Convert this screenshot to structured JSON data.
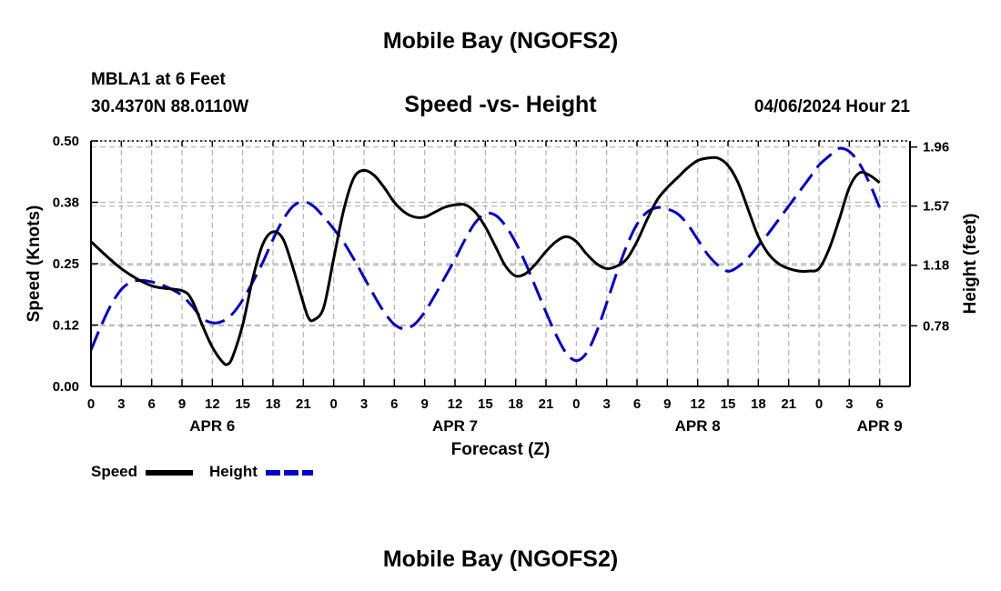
{
  "page": {
    "title": "Mobile Bay (NGOFS2)",
    "footer_title": "Mobile Bay (NGOFS2)",
    "station": "MBLA1 at 6 Feet",
    "coords": "30.4370N  88.0110W",
    "chart_title": "Speed -vs- Height",
    "datetime": "04/06/2024 Hour 21"
  },
  "colors": {
    "speed": "#000000",
    "height": "#0000cc",
    "grid": "#b4b4b4"
  },
  "chart_data": {
    "type": "line",
    "title": "Speed -vs- Height",
    "xlabel": "Forecast (Z)",
    "ylabel": "Speed (Knots)",
    "y2label": "Height (feet)",
    "x_unit": "hour",
    "xlim": [
      0,
      81
    ],
    "ylim": [
      0.0,
      0.5
    ],
    "y2lim": [
      0.38,
      2.0
    ],
    "x_ticks": [
      {
        "x": 0,
        "label": "0"
      },
      {
        "x": 3,
        "label": "3"
      },
      {
        "x": 6,
        "label": "6"
      },
      {
        "x": 9,
        "label": "9"
      },
      {
        "x": 12,
        "label": "12"
      },
      {
        "x": 15,
        "label": "15"
      },
      {
        "x": 18,
        "label": "18"
      },
      {
        "x": 21,
        "label": "21"
      },
      {
        "x": 24,
        "label": "0"
      },
      {
        "x": 27,
        "label": "3"
      },
      {
        "x": 30,
        "label": "6"
      },
      {
        "x": 33,
        "label": "9"
      },
      {
        "x": 36,
        "label": "12"
      },
      {
        "x": 39,
        "label": "15"
      },
      {
        "x": 42,
        "label": "18"
      },
      {
        "x": 45,
        "label": "21"
      },
      {
        "x": 48,
        "label": "0"
      },
      {
        "x": 51,
        "label": "3"
      },
      {
        "x": 54,
        "label": "6"
      },
      {
        "x": 57,
        "label": "9"
      },
      {
        "x": 60,
        "label": "12"
      },
      {
        "x": 63,
        "label": "15"
      },
      {
        "x": 66,
        "label": "18"
      },
      {
        "x": 69,
        "label": "21"
      },
      {
        "x": 72,
        "label": "0"
      },
      {
        "x": 75,
        "label": "3"
      },
      {
        "x": 78,
        "label": "6"
      }
    ],
    "date_labels": [
      {
        "x": 12,
        "label": "APR 6"
      },
      {
        "x": 36,
        "label": "APR 7"
      },
      {
        "x": 60,
        "label": "APR 8"
      },
      {
        "x": 78,
        "label": "APR 9"
      }
    ],
    "y_ticks": [
      {
        "v": 0.0,
        "label": "0.00"
      },
      {
        "v": 0.125,
        "label": "0.12"
      },
      {
        "v": 0.25,
        "label": "0.25"
      },
      {
        "v": 0.375,
        "label": "0.38"
      },
      {
        "v": 0.5,
        "label": "0.50"
      }
    ],
    "y2_ticks": [
      {
        "v": 0.78,
        "label": "0.78"
      },
      {
        "v": 1.18,
        "label": "1.18"
      },
      {
        "v": 1.57,
        "label": "1.57"
      },
      {
        "v": 1.96,
        "label": "1.96"
      }
    ],
    "grid": true,
    "legend_position": "bottom-left",
    "series": [
      {
        "name": "Speed",
        "axis": "left",
        "style": "solid",
        "x": [
          0,
          3,
          6,
          9,
          10,
          11,
          12,
          13,
          13.5,
          14,
          15,
          16,
          17,
          18,
          19,
          20,
          21,
          21.5,
          22,
          23,
          24,
          25,
          26,
          27,
          28,
          29,
          30,
          31,
          32,
          33,
          34,
          35,
          36,
          37,
          38,
          39,
          40,
          41,
          42,
          43,
          44,
          45,
          46,
          47,
          48,
          49,
          50,
          51,
          52,
          53,
          54,
          55,
          56,
          57,
          58,
          59,
          60,
          61,
          62,
          63,
          64,
          65,
          66,
          67,
          68,
          69,
          70,
          71,
          72,
          73,
          74,
          75,
          76,
          77,
          78
        ],
        "values": [
          0.295,
          0.24,
          0.205,
          0.195,
          0.175,
          0.125,
          0.08,
          0.05,
          0.045,
          0.06,
          0.125,
          0.22,
          0.29,
          0.315,
          0.3,
          0.24,
          0.17,
          0.14,
          0.135,
          0.16,
          0.26,
          0.36,
          0.425,
          0.44,
          0.43,
          0.405,
          0.375,
          0.355,
          0.345,
          0.345,
          0.355,
          0.365,
          0.37,
          0.37,
          0.355,
          0.325,
          0.285,
          0.245,
          0.225,
          0.23,
          0.25,
          0.275,
          0.295,
          0.305,
          0.295,
          0.27,
          0.25,
          0.24,
          0.245,
          0.26,
          0.295,
          0.34,
          0.38,
          0.405,
          0.425,
          0.445,
          0.46,
          0.465,
          0.465,
          0.45,
          0.415,
          0.36,
          0.305,
          0.27,
          0.25,
          0.24,
          0.235,
          0.235,
          0.24,
          0.28,
          0.34,
          0.405,
          0.435,
          0.43,
          0.415
        ]
      },
      {
        "name": "Height",
        "axis": "right",
        "style": "dashed",
        "x": [
          0,
          1,
          2,
          3,
          4,
          5,
          6,
          7,
          8,
          9,
          10,
          11,
          12,
          13,
          14,
          15,
          16,
          17,
          18,
          19,
          20,
          21,
          22,
          23,
          24,
          25,
          26,
          27,
          28,
          29,
          30,
          31,
          32,
          33,
          34,
          35,
          36,
          37,
          38,
          39,
          40,
          41,
          42,
          43,
          44,
          45,
          46,
          47,
          48,
          49,
          50,
          51,
          52,
          53,
          54,
          55,
          56,
          57,
          58,
          59,
          60,
          61,
          62,
          63,
          64,
          65,
          66,
          67,
          68,
          69,
          70,
          71,
          72,
          73,
          74,
          75,
          76,
          77,
          78
        ],
        "values": [
          0.62,
          0.78,
          0.92,
          1.02,
          1.07,
          1.08,
          1.07,
          1.05,
          1.02,
          0.98,
          0.91,
          0.83,
          0.8,
          0.81,
          0.86,
          0.95,
          1.07,
          1.2,
          1.35,
          1.48,
          1.57,
          1.6,
          1.57,
          1.5,
          1.42,
          1.33,
          1.22,
          1.1,
          0.98,
          0.87,
          0.79,
          0.76,
          0.79,
          0.87,
          0.98,
          1.1,
          1.22,
          1.35,
          1.46,
          1.52,
          1.51,
          1.44,
          1.33,
          1.19,
          1.03,
          0.87,
          0.72,
          0.6,
          0.55,
          0.6,
          0.74,
          0.93,
          1.13,
          1.31,
          1.45,
          1.53,
          1.56,
          1.55,
          1.52,
          1.45,
          1.35,
          1.25,
          1.18,
          1.14,
          1.17,
          1.23,
          1.31,
          1.39,
          1.48,
          1.57,
          1.66,
          1.75,
          1.84,
          1.9,
          1.95,
          1.93,
          1.85,
          1.72,
          1.56
        ]
      }
    ]
  }
}
